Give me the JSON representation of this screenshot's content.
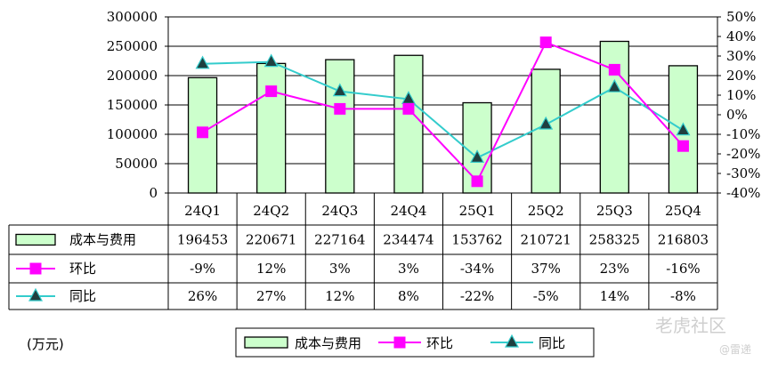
{
  "chart_data": {
    "type": "bar",
    "categories": [
      "24Q1",
      "24Q2",
      "24Q3",
      "24Q4",
      "25Q1",
      "25Q2",
      "25Q3",
      "25Q4"
    ],
    "series": [
      {
        "name": "成本与费用",
        "type": "bar",
        "axis": "left",
        "values": [
          196453,
          220671,
          227164,
          234474,
          153762,
          210721,
          258325,
          216803
        ],
        "labels": [
          "196453",
          "220671",
          "227164",
          "234474",
          "153762",
          "210721",
          "258325",
          "216803"
        ],
        "color": "#ccffcc"
      },
      {
        "name": "环比",
        "type": "line",
        "axis": "right",
        "values": [
          -9,
          12,
          3,
          3,
          -34,
          37,
          23,
          -16
        ],
        "labels": [
          "-9%",
          "12%",
          "3%",
          "3%",
          "-34%",
          "37%",
          "23%",
          "-16%"
        ],
        "color": "#ff00ff"
      },
      {
        "name": "同比",
        "type": "line",
        "axis": "right",
        "values": [
          26,
          27,
          12,
          8,
          -22,
          -5,
          14,
          -8
        ],
        "labels": [
          "26%",
          "27%",
          "12%",
          "8%",
          "-22%",
          "-5%",
          "14%",
          "-8%"
        ],
        "color": "#33cccc"
      }
    ],
    "yleft": {
      "min": 0,
      "max": 300000,
      "ticks": [
        "0",
        "50000",
        "100000",
        "150000",
        "200000",
        "250000",
        "300000"
      ]
    },
    "yright": {
      "min": -40,
      "max": 50,
      "ticks": [
        "-40%",
        "-30%",
        "-20%",
        "-10%",
        "0%",
        "10%",
        "20%",
        "30%",
        "40%",
        "50%"
      ]
    },
    "grid": true,
    "legend": {
      "position": "bottom",
      "items": [
        "成本与费用",
        "环比",
        "同比"
      ]
    }
  },
  "unit_label": "(万元)",
  "watermark": {
    "main": "老虎社区",
    "sub": "@雷递"
  }
}
